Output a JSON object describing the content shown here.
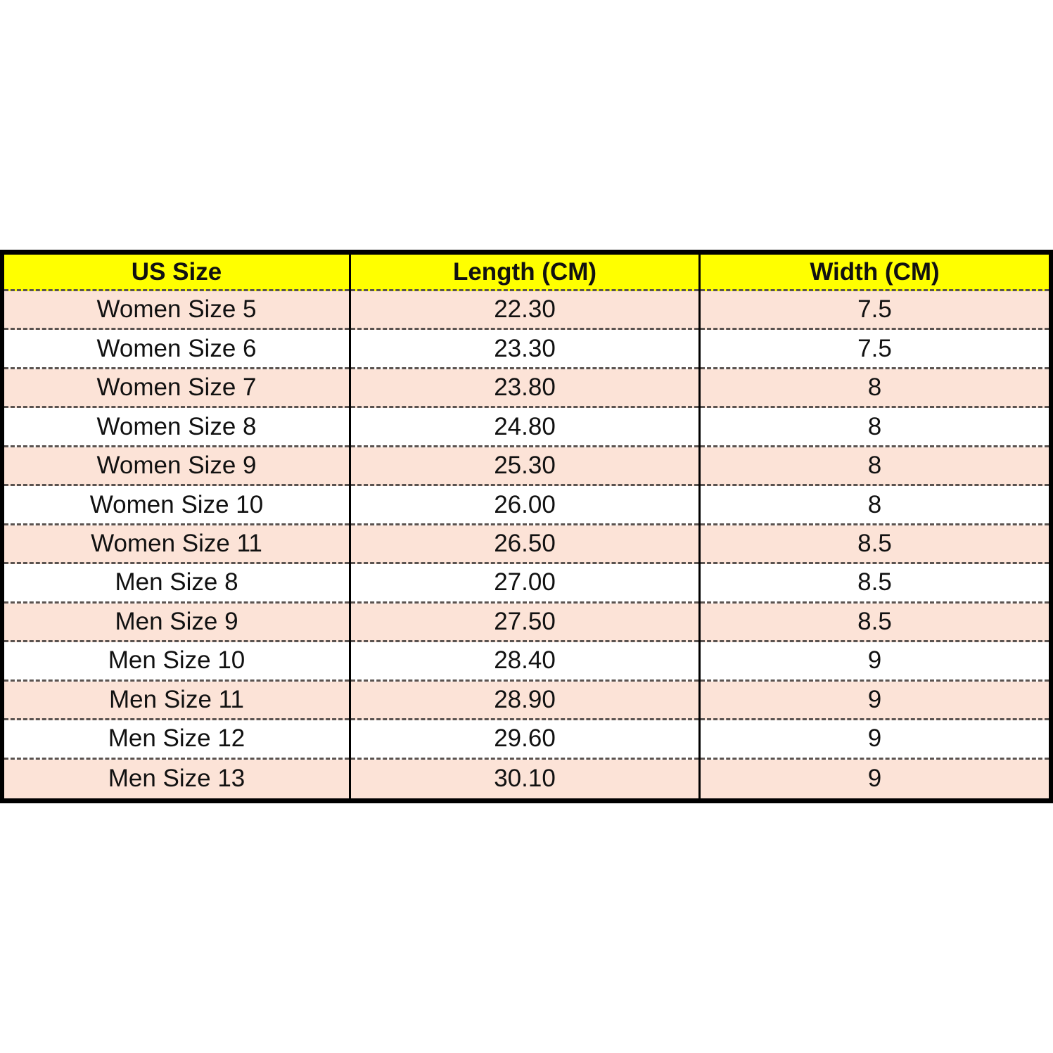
{
  "table": {
    "headers": [
      "US Size",
      "Length (CM)",
      "Width (CM)"
    ],
    "rows": [
      [
        "Women Size 5",
        "22.30",
        "7.5"
      ],
      [
        "Women Size 6",
        "23.30",
        "7.5"
      ],
      [
        "Women Size 7",
        "23.80",
        "8"
      ],
      [
        "Women Size 8",
        "24.80",
        "8"
      ],
      [
        "Women Size 9",
        "25.30",
        "8"
      ],
      [
        "Women Size 10",
        "26.00",
        "8"
      ],
      [
        "Women Size 11",
        "26.50",
        "8.5"
      ],
      [
        "Men Size 8",
        "27.00",
        "8.5"
      ],
      [
        "Men Size 9",
        "27.50",
        "8.5"
      ],
      [
        "Men Size 10",
        "28.40",
        "9"
      ],
      [
        "Men Size 11",
        "28.90",
        "9"
      ],
      [
        "Men Size 12",
        "29.60",
        "9"
      ],
      [
        "Men Size 13",
        "30.10",
        "9"
      ]
    ],
    "colors": {
      "header": "#ffff00",
      "odd_row": "#fce3d7",
      "even_row": "#ffffff",
      "border": "#000000"
    }
  }
}
